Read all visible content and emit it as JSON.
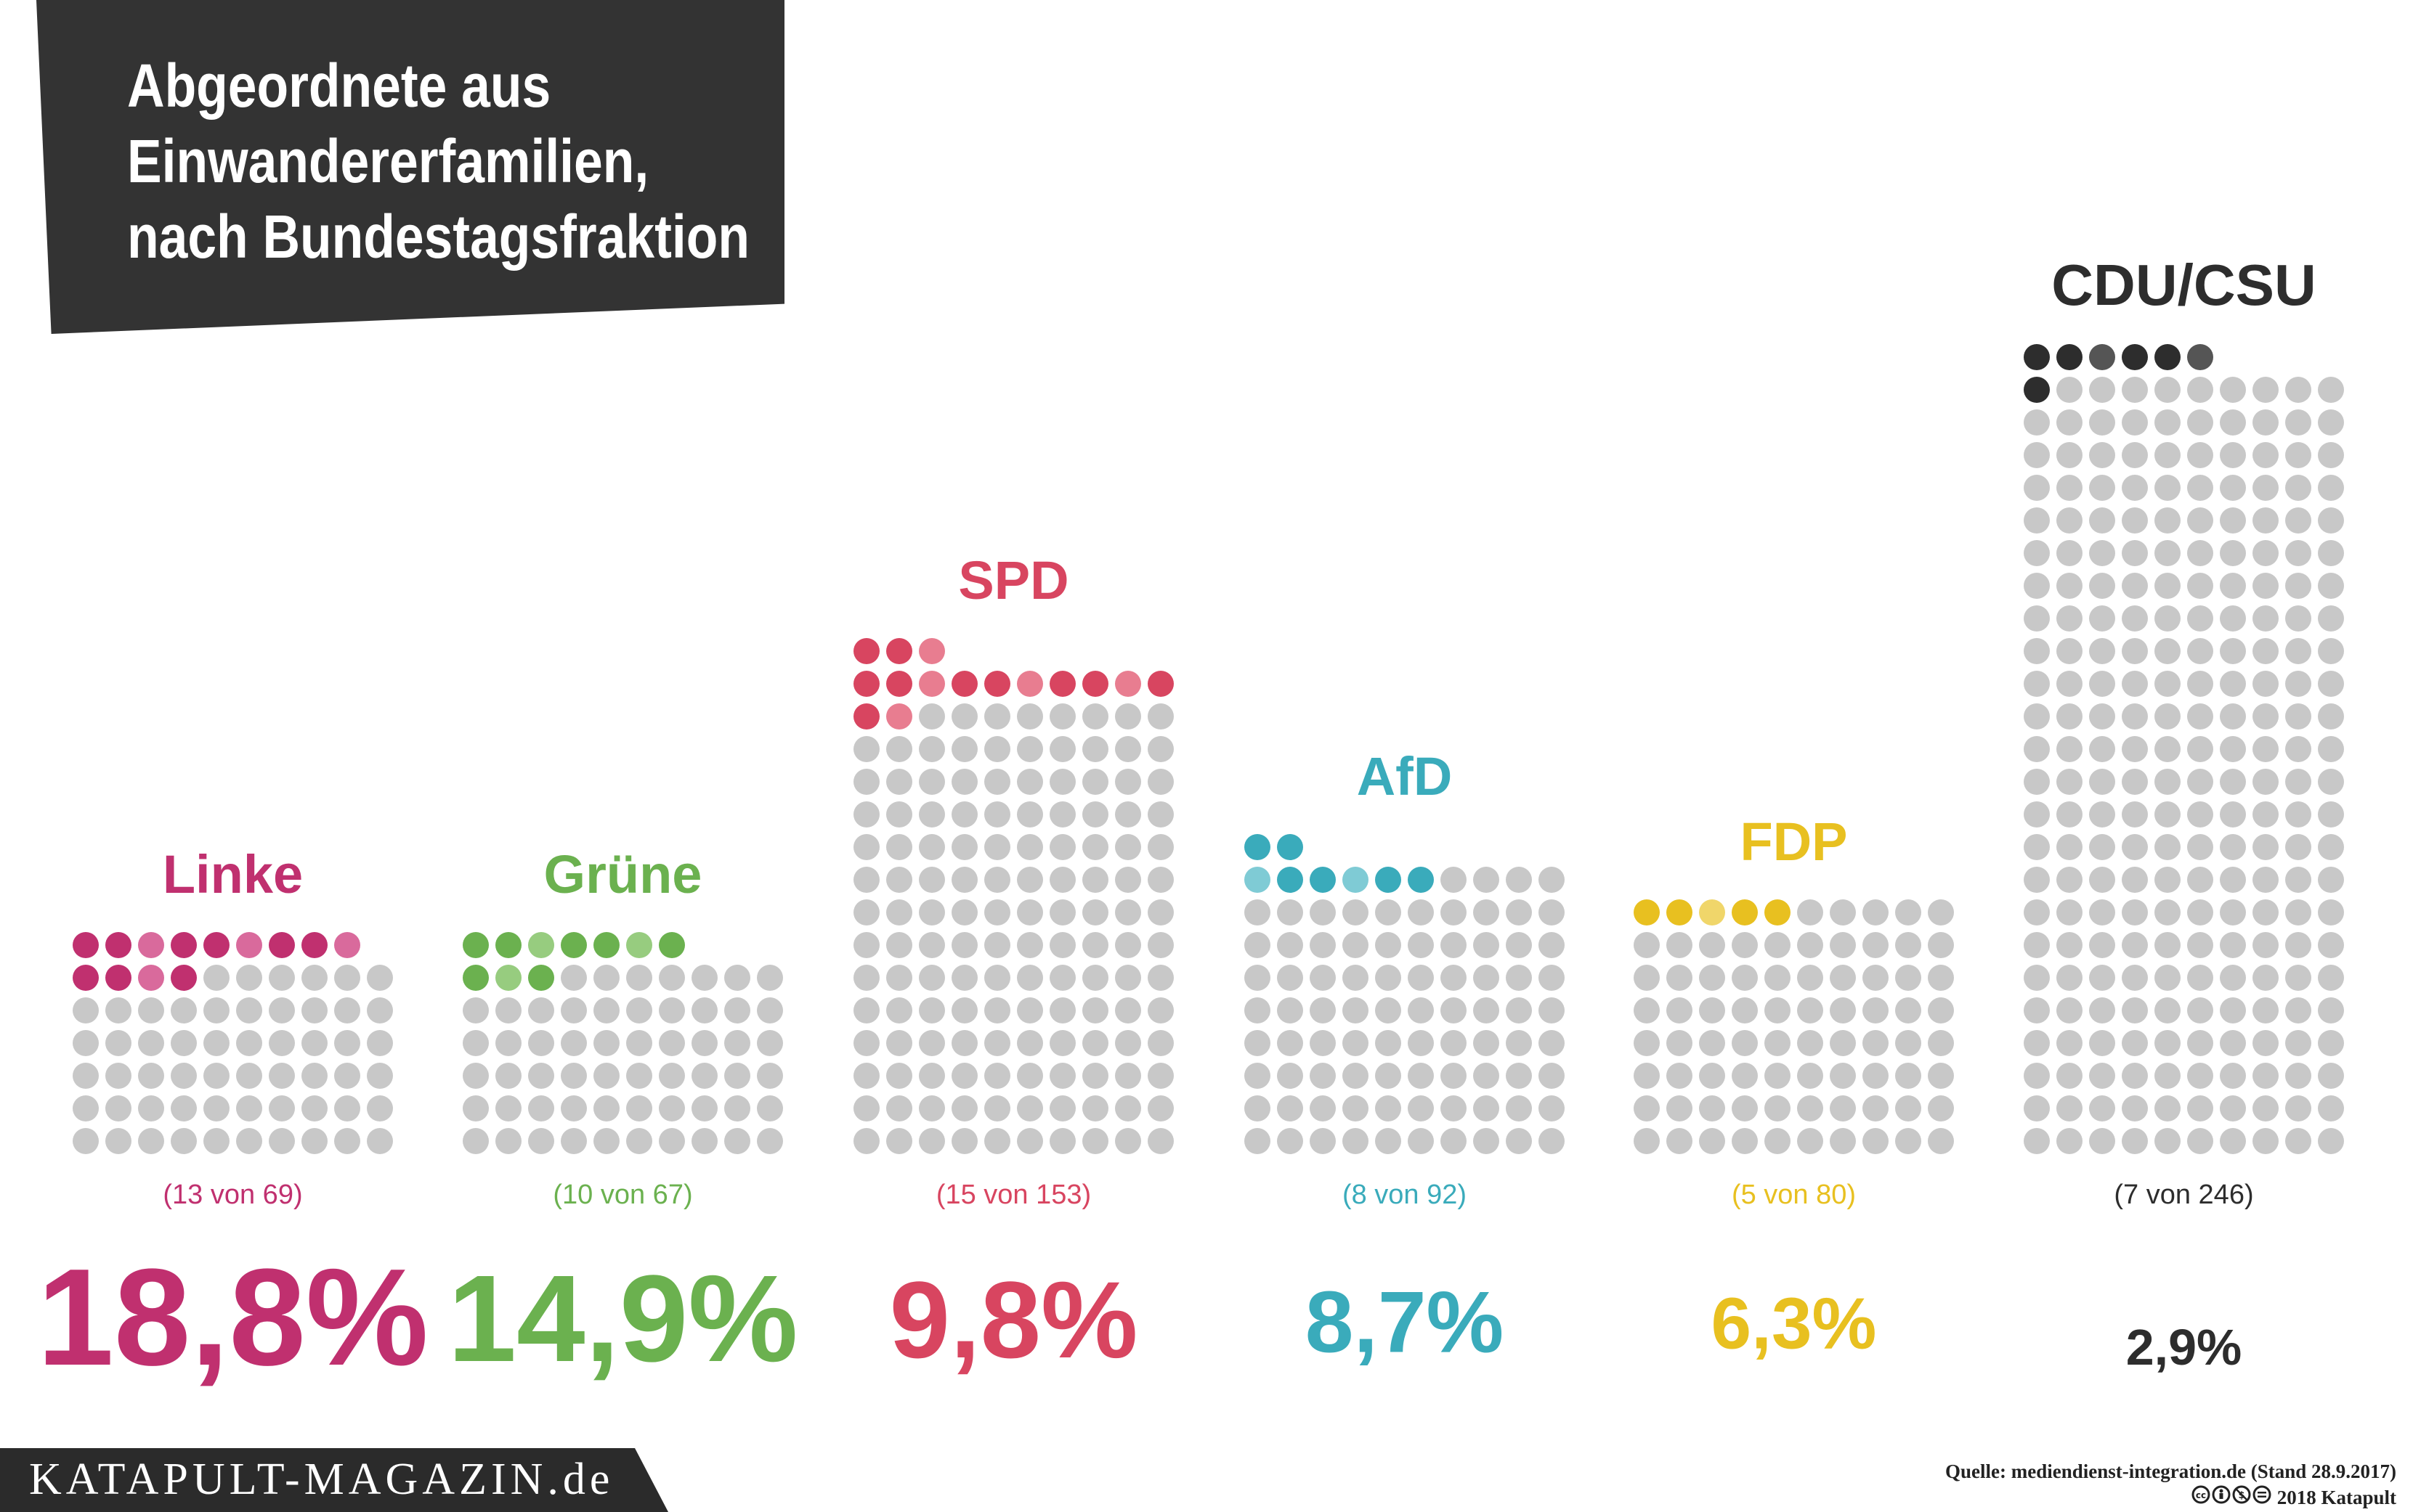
{
  "title_lines": [
    "Abgeordnete aus",
    "Einwandererfamilien,",
    "nach Bundestagsfraktion"
  ],
  "footer": {
    "brand": "KATAPULT-MAGAZIN.de",
    "source": "Quelle: mediendienst-integration.de (Stand 28.9.2017)",
    "copyright": "2018 Katapult",
    "license_icons": [
      "cc-icon",
      "by-icon",
      "nc-icon",
      "nd-icon"
    ]
  },
  "chart_data": {
    "type": "waffle",
    "unit": "Abgeordnete",
    "series": [
      {
        "name": "Linke",
        "highlighted": 13,
        "total": 69,
        "count_label": "(13 von 69)",
        "percent_label": "18,8%",
        "percent": 18.8,
        "color": "#c0306f",
        "color_alt": "#d96a9c"
      },
      {
        "name": "Grüne",
        "highlighted": 10,
        "total": 67,
        "count_label": "(10 von 67)",
        "percent_label": "14,9%",
        "percent": 14.9,
        "color": "#6bb14f",
        "color_alt": "#97cc7f"
      },
      {
        "name": "SPD",
        "highlighted": 15,
        "total": 153,
        "count_label": "(15 von 153)",
        "percent_label": "9,8%",
        "percent": 9.8,
        "color": "#d84560",
        "color_alt": "#e87d90"
      },
      {
        "name": "AfD",
        "highlighted": 8,
        "total": 92,
        "count_label": "(8 von 92)",
        "percent_label": "8,7%",
        "percent": 8.7,
        "color": "#3aabbb",
        "color_alt": "#7fcbd5"
      },
      {
        "name": "FDP",
        "highlighted": 5,
        "total": 80,
        "count_label": "(5 von 80)",
        "percent_label": "6,3%",
        "percent": 6.3,
        "color": "#e8c020",
        "color_alt": "#f0d66a"
      },
      {
        "name": "CDU/CSU",
        "highlighted": 7,
        "total": 246,
        "count_label": "(7 von 246)",
        "percent_label": "2,9%",
        "percent": 2.9,
        "color": "#2d2d2d",
        "color_alt": "#555555"
      }
    ],
    "base_color": "#c8c8c8"
  }
}
